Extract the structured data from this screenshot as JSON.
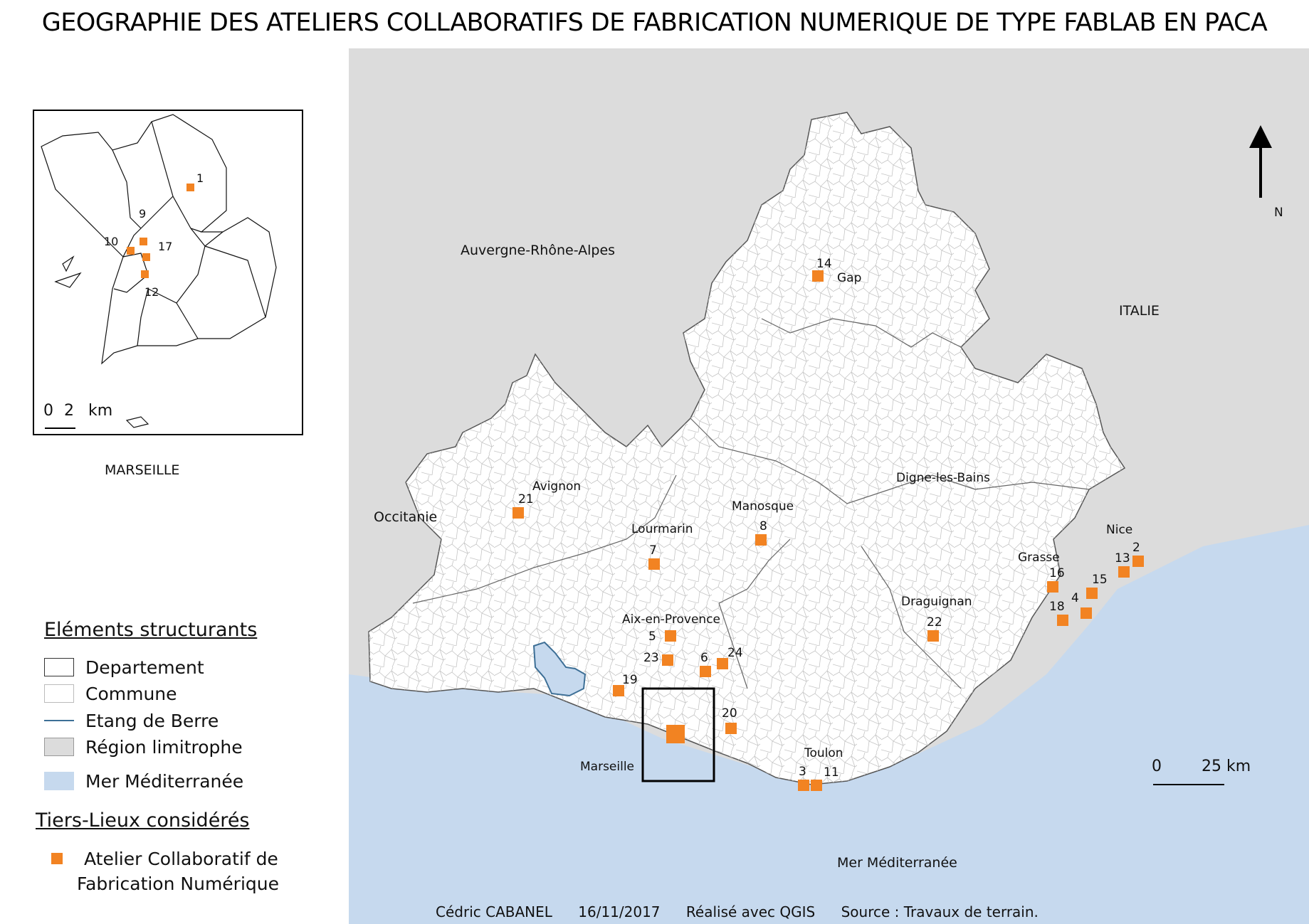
{
  "title": "GEOGRAPHIE DES ATELIERS COLLABORATIFS DE FABRICATION NUMERIQUE DE TYPE FABLAB EN PACA",
  "colors": {
    "fablab": "#f28322",
    "sea": "#c6d9ee",
    "neighbour_region": "#dcdcdc",
    "region_fill": "#ffffff",
    "etang": "#3d6f96"
  },
  "regions": {
    "auvergne": "Auvergne-Rhône-Alpes",
    "occitanie": "Occitanie",
    "italie": "ITALIE",
    "mer": "Mer Méditerranée"
  },
  "cities": [
    {
      "id": "gap",
      "name": "Gap"
    },
    {
      "id": "avignon",
      "name": "Avignon"
    },
    {
      "id": "lourmarin",
      "name": "Lourmarin"
    },
    {
      "id": "manosque",
      "name": "Manosque"
    },
    {
      "id": "digne",
      "name": "Digne-les-Bains"
    },
    {
      "id": "nice",
      "name": "Nice"
    },
    {
      "id": "grasse",
      "name": "Grasse"
    },
    {
      "id": "draguignan",
      "name": "Draguignan"
    },
    {
      "id": "aix",
      "name": "Aix-en-Provence"
    },
    {
      "id": "marseille",
      "name": "Marseille"
    },
    {
      "id": "toulon",
      "name": "Toulon"
    }
  ],
  "sites": [
    {
      "id": "2",
      "label": "2"
    },
    {
      "id": "3",
      "label": "3"
    },
    {
      "id": "4",
      "label": "4"
    },
    {
      "id": "5",
      "label": "5"
    },
    {
      "id": "6",
      "label": "6"
    },
    {
      "id": "7",
      "label": "7"
    },
    {
      "id": "8",
      "label": "8"
    },
    {
      "id": "11",
      "label": "11"
    },
    {
      "id": "13",
      "label": "13"
    },
    {
      "id": "14",
      "label": "14"
    },
    {
      "id": "15",
      "label": "15"
    },
    {
      "id": "16",
      "label": "16"
    },
    {
      "id": "18",
      "label": "18"
    },
    {
      "id": "19",
      "label": "19"
    },
    {
      "id": "20",
      "label": "20"
    },
    {
      "id": "21",
      "label": "21"
    },
    {
      "id": "22",
      "label": "22"
    },
    {
      "id": "23",
      "label": "23"
    },
    {
      "id": "24",
      "label": "24"
    }
  ],
  "inset": {
    "caption": "MARSEILLE",
    "scale": {
      "zero": "0",
      "value": "2",
      "unit": "km"
    },
    "sites": [
      {
        "id": "1",
        "label": "1"
      },
      {
        "id": "9",
        "label": "9"
      },
      {
        "id": "10",
        "label": "10"
      },
      {
        "id": "12",
        "label": "12"
      },
      {
        "id": "17",
        "label": "17"
      }
    ]
  },
  "north_label": "N",
  "scale": {
    "zero": "0",
    "value": "25",
    "unit": "km"
  },
  "legend": {
    "heading1": "Eléments structurants",
    "departement": "Departement",
    "commune": "Commune",
    "etang": "Etang de Berre",
    "region": "Région limitrophe",
    "mer": "Mer Méditerranée",
    "heading2": "Tiers-Lieux considérés",
    "atelier_line1": "Atelier Collaboratif de",
    "atelier_line2": "Fabrication Numérique"
  },
  "credits": {
    "author": "Cédric CABANEL",
    "date": "16/11/2017",
    "tool": "Réalisé avec QGIS",
    "source": "Source : Travaux de terrain."
  }
}
